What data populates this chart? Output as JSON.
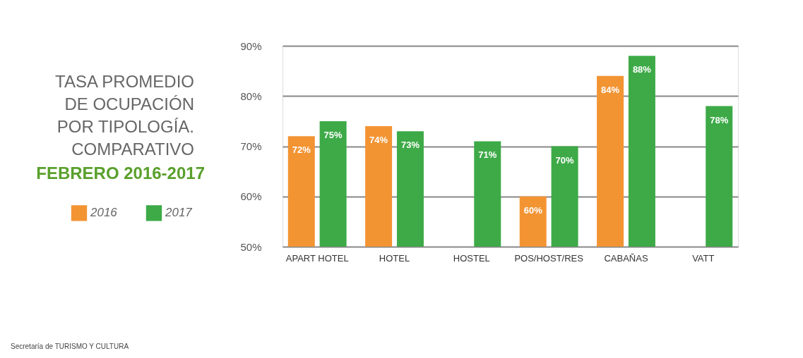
{
  "chart_data": {
    "type": "bar",
    "title": "TASA PROMEDIO\nDE OCUPACIÓN\nPOR TIPOLOGÍA.\nCOMPARATIVO",
    "subtitle": "FEBRERO 2016-2017",
    "categories": [
      "APART HOTEL",
      "HOTEL",
      "HOSTEL",
      "POS/HOST/RES",
      "CABAÑAS",
      "VATT"
    ],
    "series": [
      {
        "name": "2016",
        "color": "#f39433",
        "values": [
          72,
          74,
          null,
          60,
          84,
          null
        ],
        "value_labels": [
          "72%",
          "74%",
          null,
          "60%",
          "84%",
          null
        ]
      },
      {
        "name": "2017",
        "color": "#3daa47",
        "values": [
          75,
          73,
          71,
          70,
          88,
          78
        ],
        "value_labels": [
          "75%",
          "73%",
          "71%",
          "70%",
          "88%",
          "78%"
        ]
      }
    ],
    "ylim": [
      50,
      90
    ],
    "yticks": [
      {
        "value": 50,
        "label": "50%"
      },
      {
        "value": 60,
        "label": "60%"
      },
      {
        "value": 70,
        "label": "70%"
      },
      {
        "value": 80,
        "label": "80%"
      },
      {
        "value": 90,
        "label": "90%"
      }
    ],
    "grid": "y",
    "legend": "left",
    "annotations": [
      "Secretaría de TURISMO Y CULTURA"
    ]
  }
}
